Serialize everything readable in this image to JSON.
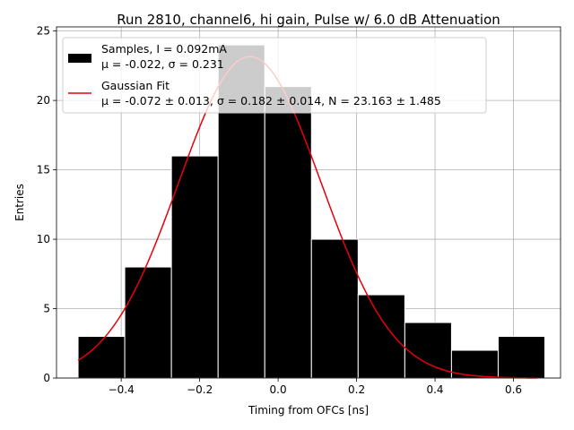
{
  "chart_data": {
    "type": "bar",
    "title": "Run 2810, channel6, hi gain, Pulse w/ 6.0 dB Attenuation",
    "xlabel": "Timing from OFCs [ns]",
    "ylabel": "Entries",
    "xlim": [
      -0.565,
      0.72
    ],
    "ylim": [
      0,
      25.3
    ],
    "grid": true,
    "legend_position": "top-left",
    "x_ticks": [
      {
        "value": -0.4,
        "label": "−0.4"
      },
      {
        "value": -0.2,
        "label": "−0.2"
      },
      {
        "value": 0.0,
        "label": "0.0"
      },
      {
        "value": 0.2,
        "label": "0.2"
      },
      {
        "value": 0.4,
        "label": "0.4"
      },
      {
        "value": 0.6,
        "label": "0.6"
      }
    ],
    "y_ticks": [
      {
        "value": 0,
        "label": "0"
      },
      {
        "value": 5,
        "label": "5"
      },
      {
        "value": 10,
        "label": "10"
      },
      {
        "value": 15,
        "label": "15"
      },
      {
        "value": 20,
        "label": "20"
      },
      {
        "value": 25,
        "label": "25"
      }
    ],
    "bins": [
      {
        "x0": -0.51,
        "x1": -0.391,
        "count": 3
      },
      {
        "x0": -0.391,
        "x1": -0.272,
        "count": 8
      },
      {
        "x0": -0.272,
        "x1": -0.153,
        "count": 16
      },
      {
        "x0": -0.153,
        "x1": -0.034,
        "count": 24
      },
      {
        "x0": -0.034,
        "x1": 0.085,
        "count": 21
      },
      {
        "x0": 0.085,
        "x1": 0.204,
        "count": 10
      },
      {
        "x0": 0.204,
        "x1": 0.323,
        "count": 6
      },
      {
        "x0": 0.323,
        "x1": 0.442,
        "count": 4
      },
      {
        "x0": 0.442,
        "x1": 0.561,
        "count": 2
      },
      {
        "x0": 0.561,
        "x1": 0.68,
        "count": 3
      }
    ],
    "fit": {
      "mu": -0.072,
      "sigma": 0.182,
      "N": 23.163,
      "x_range": [
        -0.51,
        0.66
      ]
    },
    "series": [
      {
        "name": "Samples, I = 0.092mA",
        "detail": "μ = -0.022, σ = 0.231",
        "color": "#000000"
      },
      {
        "name": "Gaussian Fit",
        "detail": "μ = -0.072 ± 0.013, σ = 0.182 ± 0.014, N = 23.163 ± 1.485",
        "color": "#e8000b"
      }
    ]
  }
}
